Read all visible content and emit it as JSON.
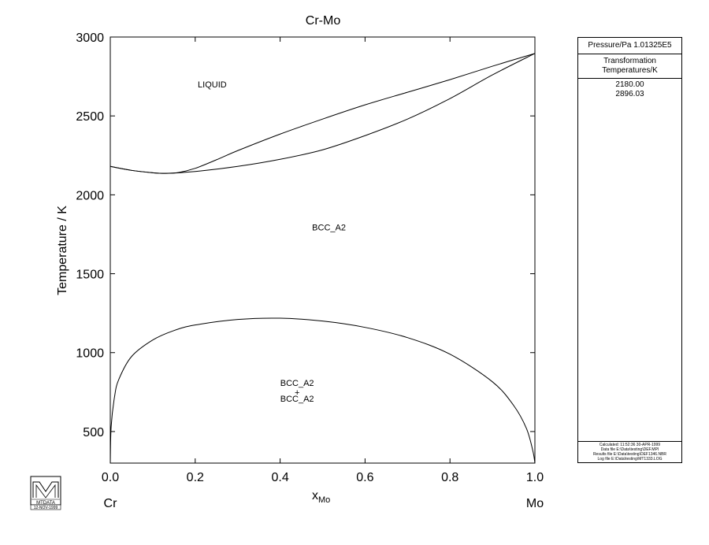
{
  "chart_data": {
    "type": "line",
    "title": "Cr-Mo",
    "xlabel_main": "x",
    "xlabel_sub": "Mo",
    "ylabel": "Temperature / K",
    "xlim": [
      0.0,
      1.0
    ],
    "ylim": [
      300,
      3000
    ],
    "x_ticks": [
      "0.0",
      "0.2",
      "0.4",
      "0.6",
      "0.8",
      "1.0"
    ],
    "x_tick_values": [
      0.0,
      0.2,
      0.4,
      0.6,
      0.8,
      1.0
    ],
    "y_ticks": [
      "500",
      "1000",
      "1500",
      "2000",
      "2500",
      "3000"
    ],
    "y_tick_values": [
      500,
      1000,
      1500,
      2000,
      2500,
      3000
    ],
    "left_element": "Cr",
    "right_element": "Mo",
    "series": [
      {
        "key": "liquidus",
        "x": [
          0.0,
          0.05,
          0.1,
          0.13,
          0.16,
          0.2,
          0.25,
          0.3,
          0.4,
          0.5,
          0.6,
          0.7,
          0.8,
          0.9,
          1.0
        ],
        "y": [
          2180,
          2155,
          2140,
          2136,
          2141,
          2168,
          2222,
          2280,
          2385,
          2480,
          2570,
          2650,
          2730,
          2815,
          2896
        ]
      },
      {
        "key": "solidus",
        "x": [
          0.0,
          0.05,
          0.1,
          0.13,
          0.2,
          0.3,
          0.4,
          0.5,
          0.6,
          0.7,
          0.8,
          0.9,
          1.0
        ],
        "y": [
          2180,
          2155,
          2140,
          2136,
          2148,
          2180,
          2225,
          2285,
          2375,
          2480,
          2610,
          2760,
          2896
        ]
      },
      {
        "key": "miscibility_gap",
        "x": [
          0.0,
          0.002,
          0.01,
          0.02,
          0.05,
          0.1,
          0.15,
          0.2,
          0.3,
          0.4,
          0.5,
          0.6,
          0.7,
          0.8,
          0.9,
          0.95,
          0.98,
          0.995,
          1.0
        ],
        "y": [
          300,
          530,
          720,
          830,
          975,
          1080,
          1140,
          1175,
          1210,
          1218,
          1200,
          1160,
          1095,
          990,
          815,
          665,
          520,
          380,
          300
        ]
      }
    ],
    "annotations": [
      {
        "key": "liquid",
        "text": "LIQUID",
        "x": 0.24,
        "y": 2680
      },
      {
        "key": "bcc",
        "text": "BCC_A2",
        "x": 0.515,
        "y": 1775
      },
      {
        "key": "two_phase_top",
        "text": "BCC_A2",
        "x": 0.44,
        "y": 790
      },
      {
        "key": "two_phase_plus",
        "text": "+",
        "x": 0.44,
        "y": 730
      },
      {
        "key": "two_phase_bottom",
        "text": "BCC_A2",
        "x": 0.44,
        "y": 690
      }
    ]
  },
  "info_panel": {
    "pressure": "Pressure/Pa  1.01325E5",
    "trans_line1": "Transformation",
    "trans_line2": "Temperatures/K",
    "values": [
      "2180.00",
      "2896.03"
    ],
    "footer": [
      "Calculated: 11:52:36  30-APR-1999",
      "Data file  E:\\Data\\testing\\DEF.MPI",
      "Results file  E:\\Data\\testing\\DEF1346.NBR",
      "Log file  E:\\Data\\testing\\MT1333.LOG"
    ]
  },
  "logo": {
    "text": "MTDATA",
    "date": "12-NOV-1999"
  }
}
